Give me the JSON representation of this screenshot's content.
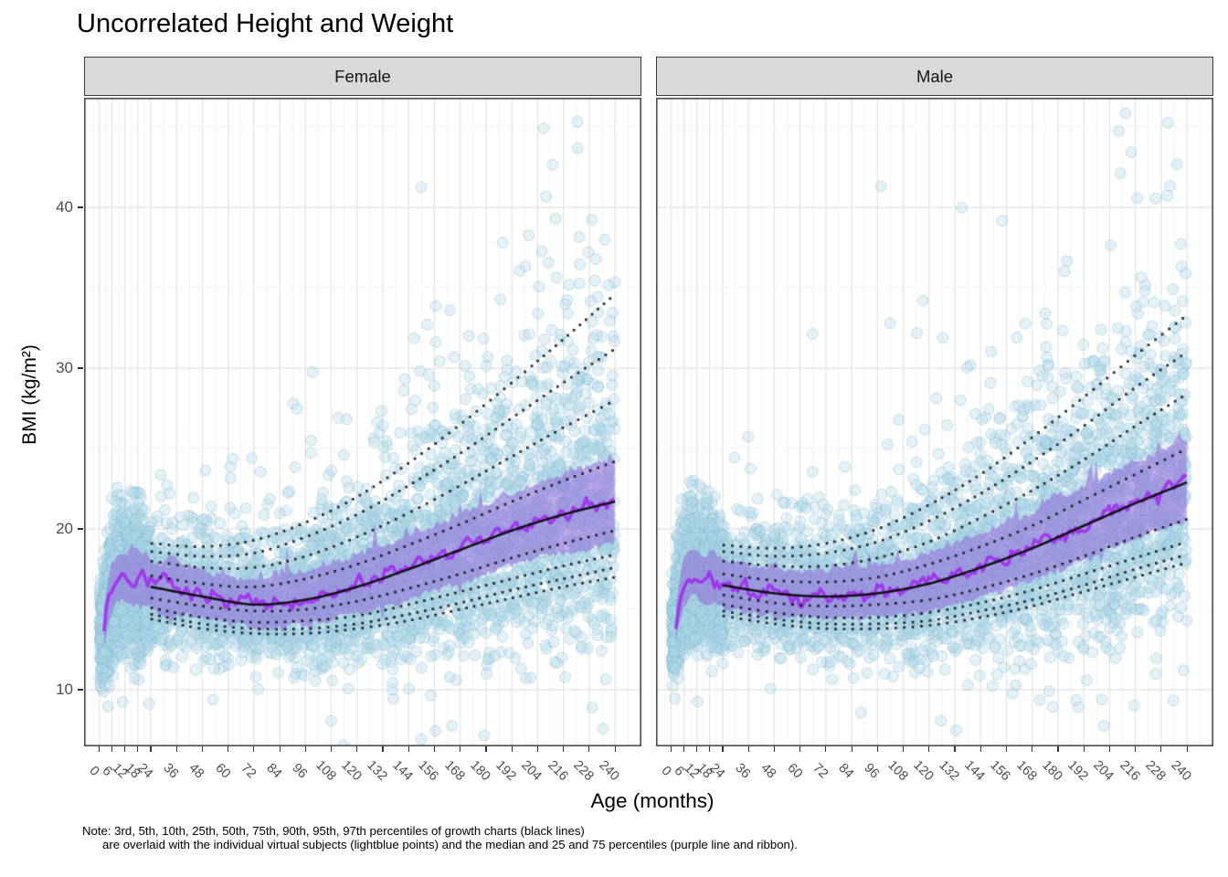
{
  "note": {
    "line1": "Note: 3rd, 5th, 10th, 25th, 50th, 75th, 90th, 95th, 97th percentiles of growth charts (black lines)",
    "line2": "are overlaid with the individual virtual subjects (lightblue points) and the median and 25 and 75 percentiles (purple line and ribbon)."
  },
  "chart_data": {
    "type": "scatter",
    "title": "Uncorrelated Height and Weight",
    "xlabel": "Age (months)",
    "ylabel": "BMI (kg/m²)",
    "facets": [
      "Female",
      "Male"
    ],
    "legend_position": "none",
    "grid": true,
    "x_axis": {
      "ticks": [
        0,
        6,
        12,
        18,
        24,
        36,
        48,
        60,
        72,
        84,
        96,
        108,
        120,
        132,
        144,
        156,
        168,
        180,
        192,
        204,
        216,
        228,
        240
      ],
      "range": [
        -7,
        252
      ]
    },
    "y_axis": {
      "ticks": [
        10,
        20,
        30,
        40
      ],
      "minor_ticks": [
        15,
        25,
        35,
        45
      ],
      "range": [
        6.5,
        46.8
      ]
    },
    "percentiles": {
      "labels": [
        "3rd",
        "5th",
        "10th",
        "25th",
        "50th",
        "75th",
        "90th",
        "95th",
        "97th"
      ],
      "ages": [
        24,
        48,
        72,
        96,
        120,
        144,
        168,
        192,
        216,
        240
      ],
      "female": {
        "p3": [
          14.4,
          13.8,
          13.5,
          13.5,
          13.8,
          14.3,
          15.0,
          15.7,
          16.4,
          17.0
        ],
        "p5": [
          14.7,
          14.1,
          13.8,
          13.8,
          14.1,
          14.7,
          15.4,
          16.2,
          16.9,
          17.6
        ],
        "p10": [
          15.1,
          14.5,
          14.2,
          14.3,
          14.6,
          15.3,
          16.1,
          16.9,
          17.7,
          18.4
        ],
        "p25": [
          15.7,
          15.2,
          14.9,
          15.0,
          15.5,
          16.3,
          17.2,
          18.2,
          19.1,
          19.9
        ],
        "p50": [
          16.4,
          15.8,
          15.3,
          15.6,
          16.4,
          17.5,
          18.7,
          19.9,
          20.9,
          21.7
        ],
        "p75": [
          17.1,
          16.6,
          16.4,
          16.9,
          17.8,
          19.0,
          20.3,
          21.7,
          23.0,
          24.2
        ],
        "p90": [
          18.0,
          17.6,
          17.6,
          18.3,
          19.5,
          21.0,
          22.7,
          24.5,
          26.3,
          28.0
        ],
        "p95": [
          18.6,
          18.3,
          18.5,
          19.5,
          20.9,
          22.7,
          24.7,
          26.9,
          29.1,
          31.2
        ],
        "p97": [
          19.1,
          18.9,
          19.3,
          20.4,
          22.0,
          24.1,
          26.5,
          29.1,
          31.8,
          34.6
        ]
      },
      "male": {
        "p3": [
          14.6,
          14.1,
          13.8,
          13.8,
          14.0,
          14.5,
          15.2,
          16.1,
          17.0,
          17.9
        ],
        "p5": [
          14.9,
          14.4,
          14.1,
          14.1,
          14.3,
          14.9,
          15.6,
          16.5,
          17.5,
          18.4
        ],
        "p10": [
          15.3,
          14.8,
          14.5,
          14.5,
          14.8,
          15.4,
          16.2,
          17.2,
          18.2,
          19.2
        ],
        "p25": [
          15.9,
          15.4,
          15.2,
          15.3,
          15.6,
          16.3,
          17.2,
          18.3,
          19.5,
          20.6
        ],
        "p50": [
          16.5,
          16.0,
          15.8,
          16.0,
          16.6,
          17.6,
          18.8,
          20.2,
          21.6,
          22.9
        ],
        "p75": [
          17.2,
          16.8,
          16.7,
          17.0,
          17.8,
          18.9,
          20.2,
          21.8,
          23.4,
          25.0
        ],
        "p90": [
          18.0,
          17.7,
          17.7,
          18.2,
          19.2,
          20.7,
          22.4,
          24.3,
          26.4,
          28.4
        ],
        "p95": [
          18.6,
          18.3,
          18.5,
          19.2,
          20.5,
          22.2,
          24.2,
          26.4,
          28.8,
          31.0
        ],
        "p97": [
          19.0,
          18.8,
          19.1,
          20.0,
          21.5,
          23.4,
          25.7,
          28.2,
          30.8,
          33.3
        ]
      }
    },
    "virtual_subjects": {
      "median_ages": [
        2,
        3,
        4,
        5,
        6,
        8,
        10,
        12,
        14,
        16,
        18,
        20,
        22,
        24,
        48,
        72,
        96,
        120,
        144,
        168,
        192,
        216,
        240
      ],
      "female_median": [
        13.5,
        14.5,
        15.3,
        15.9,
        16.3,
        16.8,
        17.0,
        17.1,
        16.9,
        16.8,
        16.9,
        16.8,
        16.6,
        16.5,
        15.9,
        15.4,
        15.7,
        16.5,
        17.6,
        18.8,
        20.0,
        21.0,
        21.8
      ],
      "male_median": [
        13.7,
        14.8,
        15.6,
        16.2,
        16.6,
        17.0,
        17.2,
        17.2,
        17.0,
        16.9,
        16.9,
        16.8,
        16.7,
        16.6,
        16.1,
        15.9,
        16.1,
        16.7,
        17.7,
        18.9,
        20.3,
        21.7,
        23.1
      ],
      "ribbon_ages": [
        2,
        12,
        24,
        48,
        72,
        96,
        120,
        144,
        168,
        192,
        216,
        240
      ],
      "ribbon_halfwidth": [
        1.0,
        1.2,
        1.15,
        1.1,
        1.15,
        1.3,
        1.5,
        1.65,
        1.8,
        1.95,
        2.1,
        2.25
      ],
      "points_per_facet": 5200,
      "infant_fraction": 0.32,
      "seeds": {
        "female": 7,
        "male": 13
      }
    },
    "colors": {
      "point_fill": "#ADD8E6",
      "point_stroke": "#82B4CD",
      "ribbon": "#9370DB",
      "median_line": "#A020F0",
      "growth_solid_line": "#0A0A0A",
      "growth_dotted": "#1A1A1A",
      "grid_major": "#E3E3E3",
      "grid_minor": "#F2F2F2",
      "strip_bg": "#D9D9D9",
      "panel_border": "#3C3C3C",
      "tick_label": "#4D4D4D",
      "axis_tick": "#333333"
    }
  }
}
